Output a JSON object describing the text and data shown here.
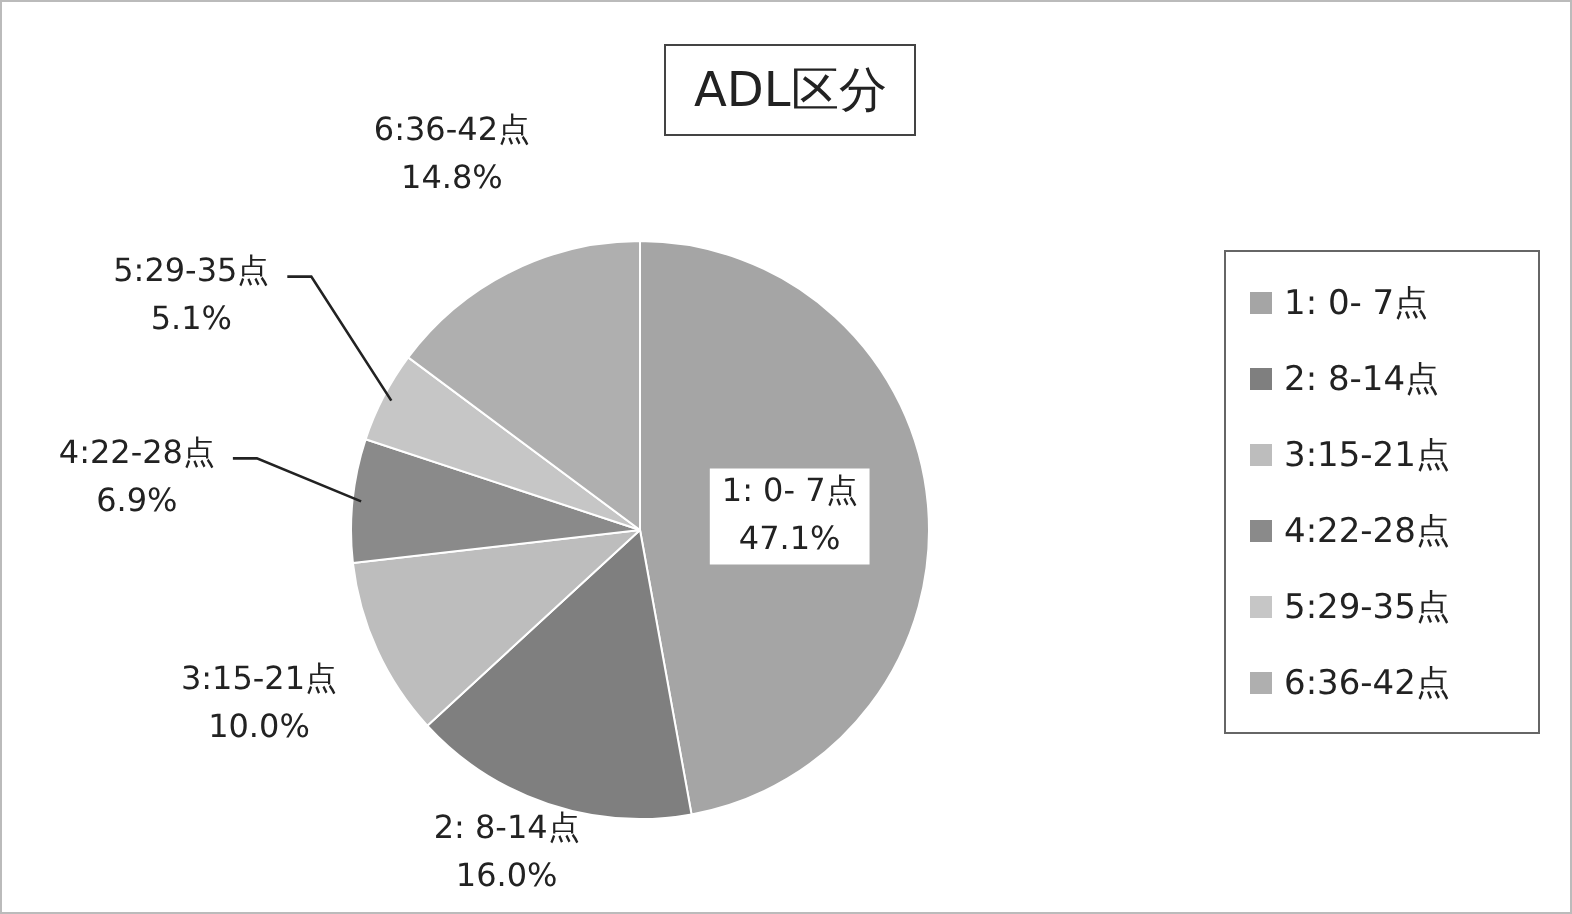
{
  "chart_data": {
    "type": "pie",
    "title": "ADL区分",
    "categories": [
      "1: 0- 7点",
      "2: 8-14点",
      "3:15-21点",
      "4:22-28点",
      "5:29-35点",
      "6:36-42点"
    ],
    "values": [
      47.1,
      16.0,
      10.0,
      6.9,
      5.1,
      14.8
    ],
    "value_labels": [
      "47.1%",
      "16.0%",
      "10.0%",
      "6.9%",
      "5.1%",
      "14.8%"
    ],
    "colors": [
      "#a5a5a5",
      "#7f7f7f",
      "#bdbdbd",
      "#8a8a8a",
      "#c6c6c6",
      "#afafaf"
    ],
    "legend": "right"
  }
}
